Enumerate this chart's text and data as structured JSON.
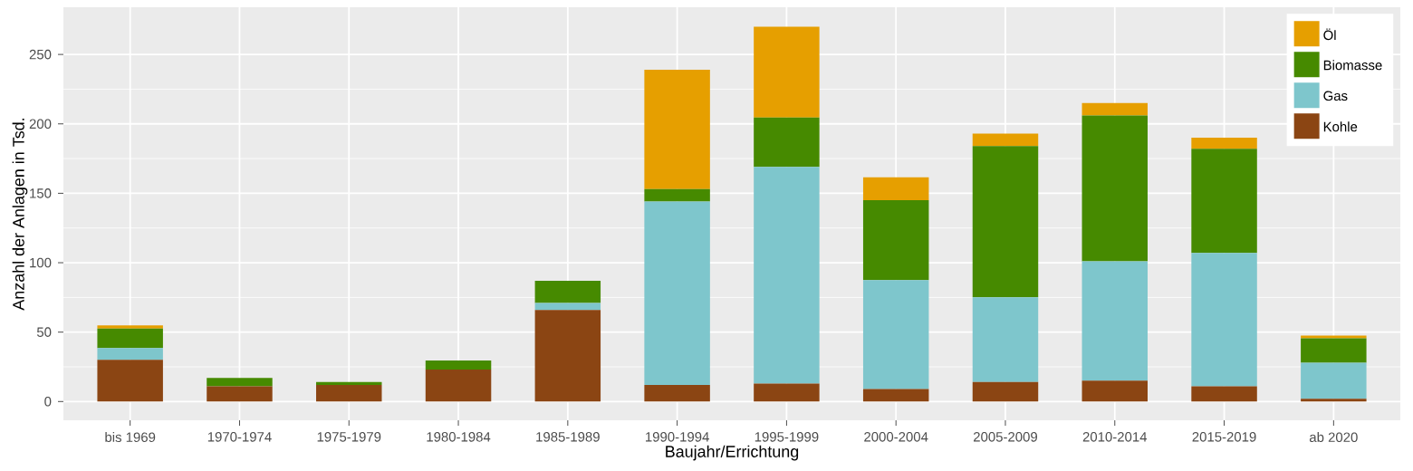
{
  "chart_data": {
    "type": "bar",
    "stacked": true,
    "xlabel": "Baujahr/Errichtung",
    "ylabel": "Anzahl der Anlagen in Tsd.",
    "categories": [
      "bis 1969",
      "1970-1974",
      "1975-1979",
      "1980-1984",
      "1985-1989",
      "1990-1994",
      "1995-1999",
      "2000-2004",
      "2005-2009",
      "2010-2014",
      "2015-2019",
      "ab 2020"
    ],
    "series": [
      {
        "name": "Kohle",
        "color": "#8b4513",
        "values": [
          30,
          11,
          12,
          23,
          66,
          12,
          13,
          9,
          14,
          15,
          11,
          2
        ]
      },
      {
        "name": "Gas",
        "color": "#7ec6cc",
        "values": [
          8.5,
          0,
          0,
          0,
          5,
          132,
          156,
          78.5,
          61,
          86,
          96,
          26
        ]
      },
      {
        "name": "Biomasse",
        "color": "#468a00",
        "values": [
          14,
          6,
          2,
          6.5,
          16,
          9,
          35.5,
          57.5,
          109,
          105,
          75,
          17.5
        ]
      },
      {
        "name": "Öl",
        "color": "#e69f00",
        "values": [
          2.3,
          0,
          0,
          0,
          0,
          86,
          65.5,
          16.5,
          9,
          9,
          8,
          2
        ]
      }
    ],
    "ylim": [
      -13.5,
      284
    ],
    "yticks": [
      0,
      50,
      100,
      150,
      200,
      250
    ],
    "grid": true,
    "legend": "top right"
  }
}
